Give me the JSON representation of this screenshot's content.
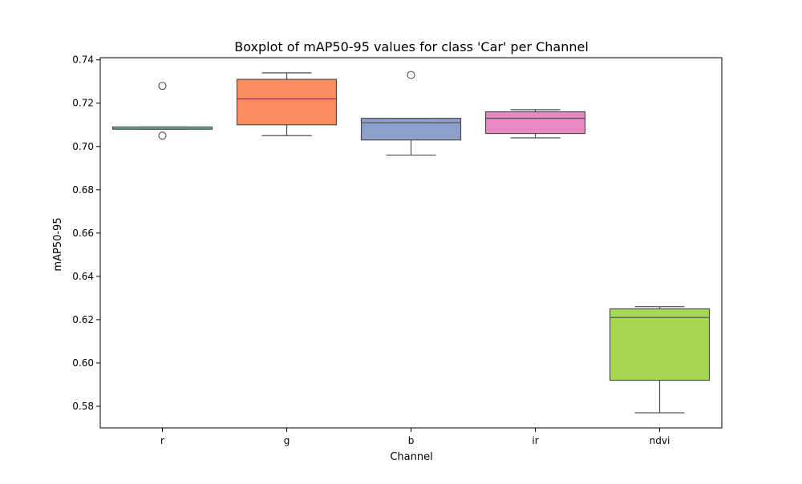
{
  "chart_data": {
    "type": "box",
    "title": "Boxplot of mAP50-95 values for class 'Car' per Channel",
    "xlabel": "Channel",
    "ylabel": "mAP50-95",
    "ylim": [
      0.57,
      0.741
    ],
    "yticks": [
      0.58,
      0.6,
      0.62,
      0.64,
      0.66,
      0.68,
      0.7,
      0.72,
      0.74
    ],
    "ytick_labels": [
      "0.58",
      "0.60",
      "0.62",
      "0.64",
      "0.66",
      "0.68",
      "0.70",
      "0.72",
      "0.74"
    ],
    "grid": false,
    "legend": "none",
    "categories": [
      "r",
      "g",
      "b",
      "ir",
      "ndvi"
    ],
    "boxes": [
      {
        "category": "r",
        "color": "#66c2a5",
        "q1": 0.708,
        "median": 0.708,
        "q3": 0.709,
        "whisker_low": 0.708,
        "whisker_high": 0.709,
        "outliers": [
          0.728,
          0.705
        ]
      },
      {
        "category": "g",
        "color": "#fc8d62",
        "q1": 0.71,
        "median": 0.722,
        "q3": 0.731,
        "whisker_low": 0.705,
        "whisker_high": 0.734,
        "outliers": []
      },
      {
        "category": "b",
        "color": "#8da0cb",
        "q1": 0.703,
        "median": 0.711,
        "q3": 0.713,
        "whisker_low": 0.696,
        "whisker_high": 0.713,
        "outliers": [
          0.733
        ]
      },
      {
        "category": "ir",
        "color": "#e78ac3",
        "q1": 0.706,
        "median": 0.713,
        "q3": 0.716,
        "whisker_low": 0.704,
        "whisker_high": 0.717,
        "outliers": []
      },
      {
        "category": "ndvi",
        "color": "#a6d854",
        "q1": 0.592,
        "median": 0.621,
        "q3": 0.625,
        "whisker_low": 0.577,
        "whisker_high": 0.626,
        "outliers": []
      }
    ]
  }
}
